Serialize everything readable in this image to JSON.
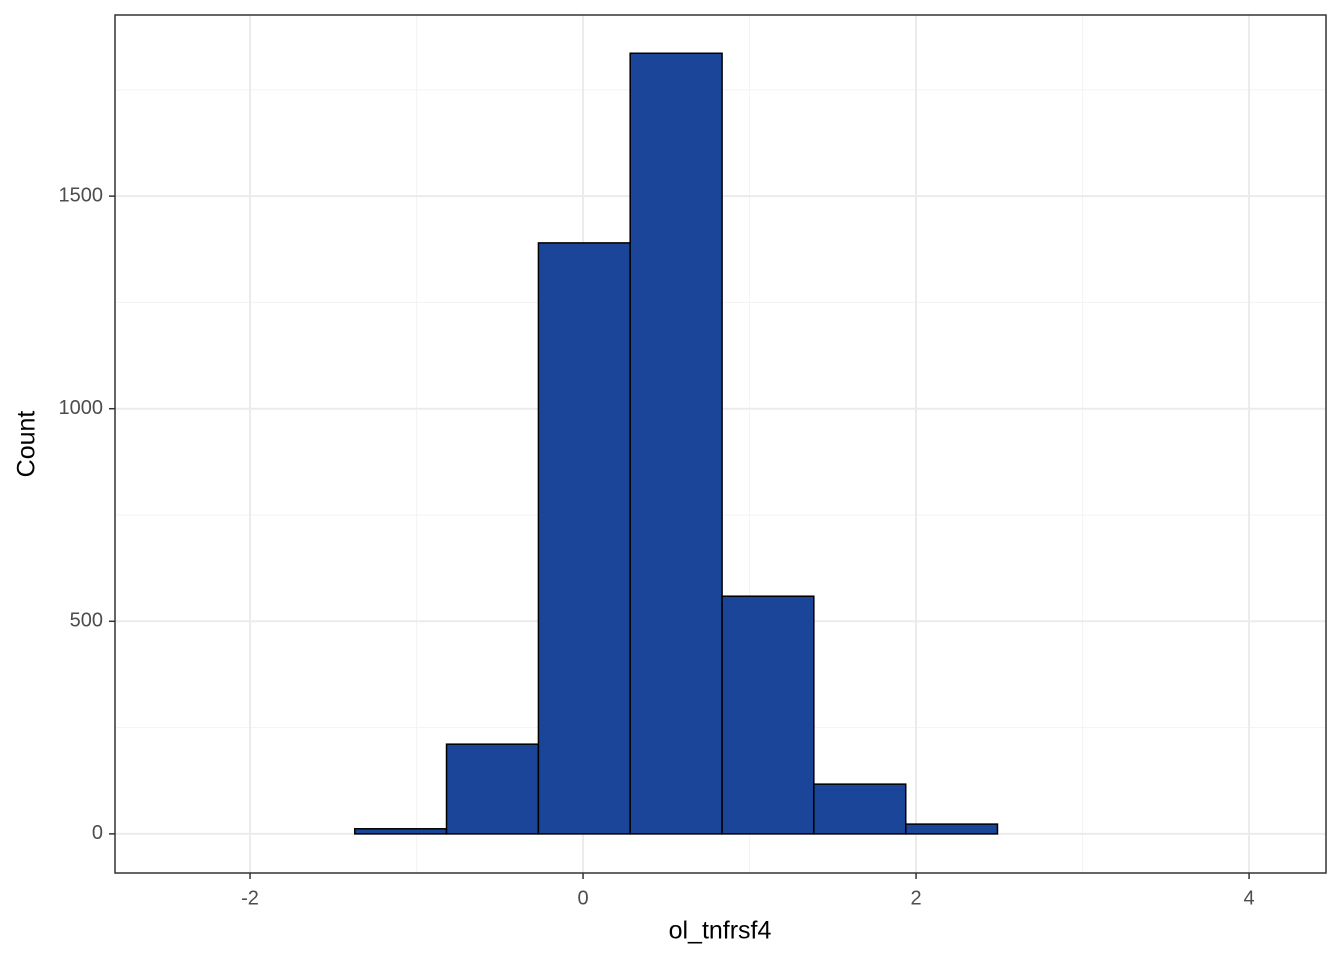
{
  "chart_data": {
    "type": "histogram",
    "x_label": "ol_tnfrsf4",
    "y_label": "Count",
    "bins": [
      -2.474,
      -1.923,
      -1.371,
      -0.82,
      -0.268,
      0.283,
      0.835,
      1.386,
      1.938,
      2.489,
      3.041,
      3.592,
      4.144
    ],
    "values": [
      0,
      0,
      12,
      211,
      1390,
      1836,
      559,
      117,
      23,
      0,
      0,
      0
    ],
    "color": "#1a4599",
    "xlim": [
      -2.811,
      4.462
    ],
    "ylim": [
      -92,
      1926
    ],
    "xticks": [
      -2,
      0,
      2,
      4
    ],
    "yticks": [
      0,
      500,
      1000,
      1500
    ],
    "grid": true
  }
}
